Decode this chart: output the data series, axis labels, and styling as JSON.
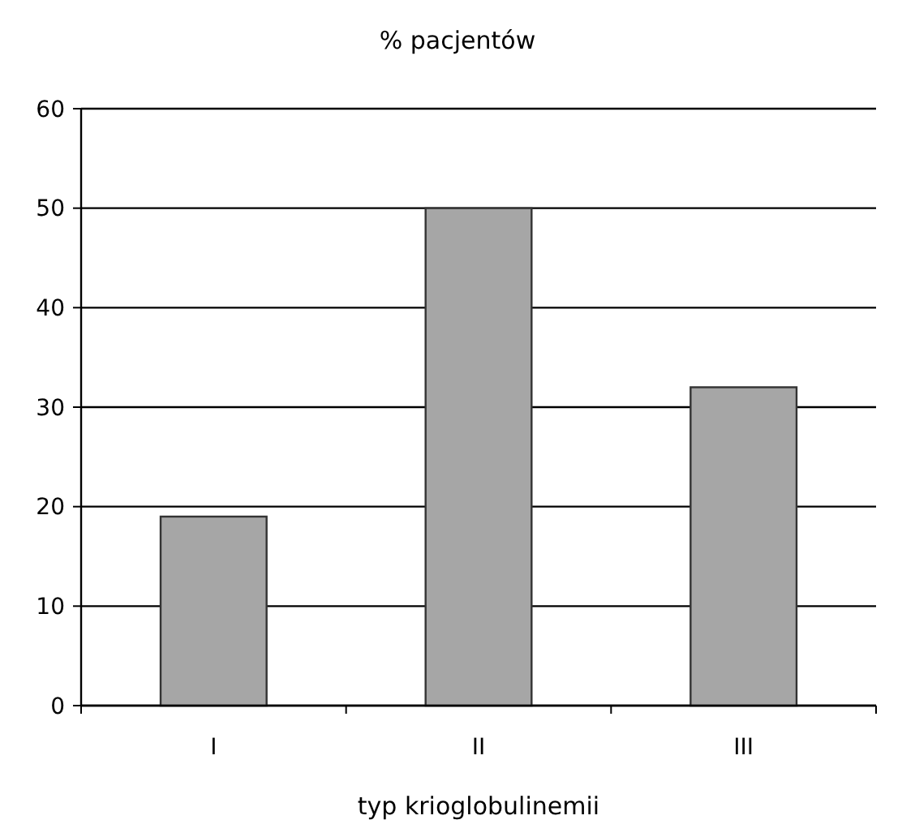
{
  "chart_data": {
    "type": "bar",
    "title": "% pacjentów",
    "xlabel": "typ krioglobulinemii",
    "categories": [
      "I",
      "II",
      "III"
    ],
    "values": [
      19,
      50,
      32
    ],
    "color": "#a6a6a6",
    "ylim": [
      0,
      60
    ],
    "yticks": [
      0,
      10,
      20,
      30,
      40,
      50,
      60
    ],
    "grid": "y"
  }
}
